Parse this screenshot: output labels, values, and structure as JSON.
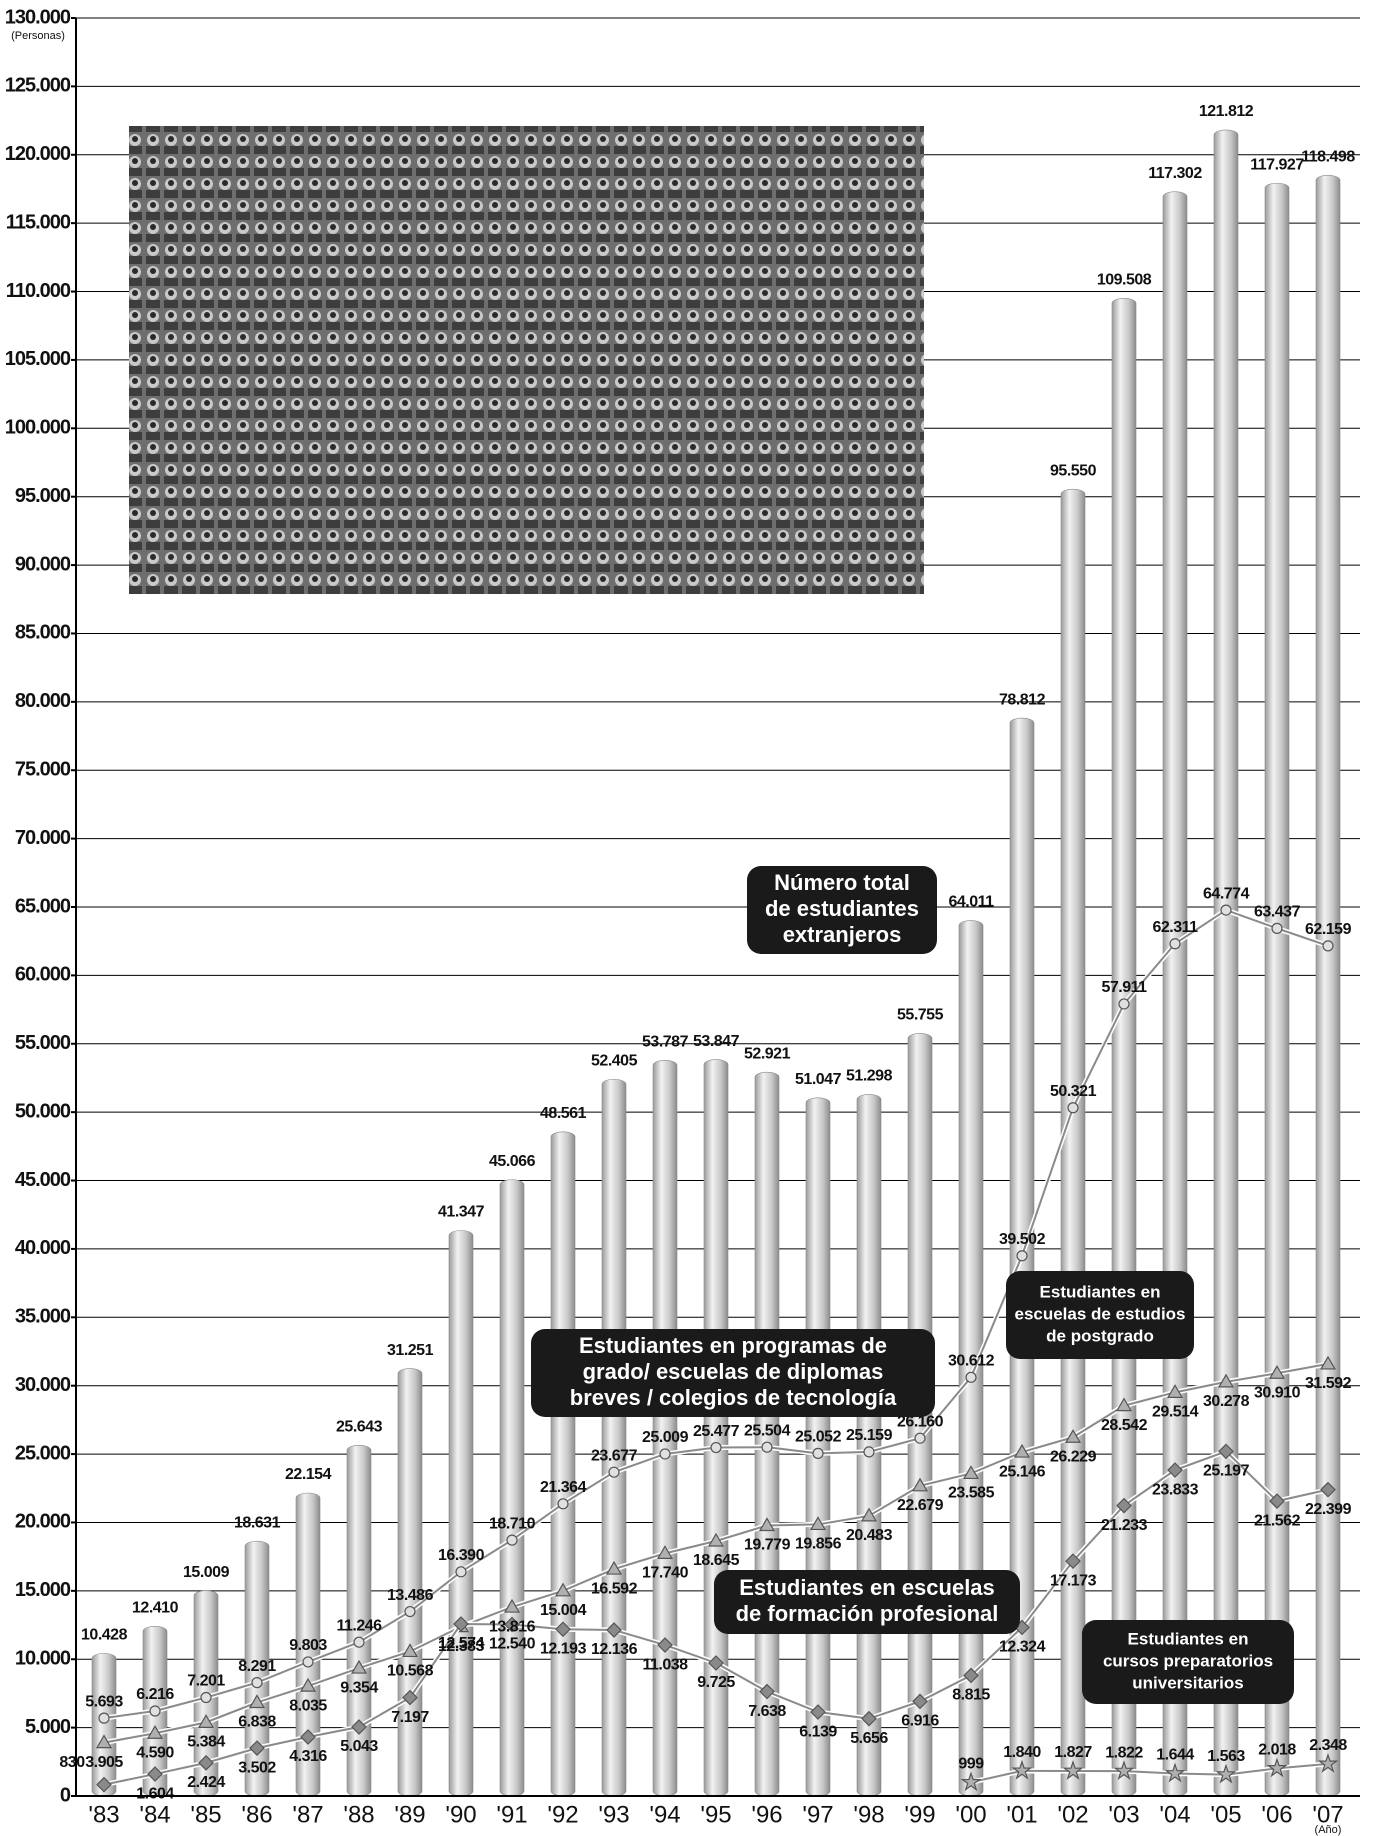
{
  "chart_data": {
    "type": "bar",
    "y_unit": "(Personas)",
    "x_unit": "(Año)",
    "categories": [
      "'83",
      "'84",
      "'85",
      "'86",
      "'87",
      "'88",
      "'89",
      "'90",
      "'91",
      "'92",
      "'93",
      "'94",
      "'95",
      "'96",
      "'97",
      "'98",
      "'99",
      "'00",
      "'01",
      "'02",
      "'03",
      "'04",
      "'05",
      "'06",
      "'07"
    ],
    "series": [
      {
        "name": "Número total de estudiantes extranjeros",
        "type": "bar",
        "color": "#c4c4c4",
        "values": [
          10428,
          12410,
          15009,
          18631,
          22154,
          25643,
          31251,
          41347,
          45066,
          48561,
          52405,
          53787,
          53847,
          52921,
          51047,
          51298,
          55755,
          64011,
          78812,
          95550,
          109508,
          117302,
          121812,
          117927,
          118498
        ],
        "value_labels": [
          "10.428",
          "12.410",
          "15.009",
          "18.631",
          "22.154",
          "25.643",
          "31.251",
          "41.347",
          "45.066",
          "48.561",
          "52.405",
          "53.787",
          "53.847",
          "52.921",
          "51.047",
          "51.298",
          "55.755",
          "64.011",
          "78.812",
          "95.550",
          "109.508",
          "117.302",
          "121.812",
          "117.927",
          "118.498"
        ]
      },
      {
        "name": "Estudiantes en programas de grado/ escuelas de diplomas breves / colegios de tecnología",
        "type": "line",
        "marker": "circle",
        "color": "#8a8a8a",
        "values": [
          5693,
          6216,
          7201,
          8291,
          9803,
          11246,
          13486,
          16390,
          18710,
          21364,
          23677,
          25009,
          25477,
          25504,
          25052,
          25159,
          26160,
          30612,
          39502,
          50321,
          57911,
          62311,
          64774,
          63437,
          62159
        ],
        "value_labels": [
          "5.693",
          "6.216",
          "7.201",
          "8.291",
          "9.803",
          "11.246",
          "13.486",
          "16.390",
          "18.710",
          "21.364",
          "23.677",
          "25.009",
          "25.477",
          "25.504",
          "25.052",
          "25.159",
          "26.160",
          "30.612",
          "39.502",
          "50.321",
          "57.911",
          "62.311",
          "64.774",
          "63.437",
          "62.159"
        ]
      },
      {
        "name": "Estudiantes en escuelas de estudios de postgrado",
        "type": "line",
        "marker": "triangle",
        "color": "#8a8a8a",
        "values": [
          3905,
          4590,
          5384,
          6838,
          8035,
          9354,
          10568,
          12383,
          13816,
          15004,
          16592,
          17740,
          18645,
          19779,
          19856,
          20483,
          22679,
          23585,
          25146,
          26229,
          28542,
          29514,
          30278,
          30910,
          31592
        ],
        "value_labels": [
          "3.905",
          "4.590",
          "5.384",
          "6.838",
          "8.035",
          "9.354",
          "10.568",
          "12.383",
          "13.816",
          "15.004",
          "16.592",
          "17.740",
          "18.645",
          "19.779",
          "19.856",
          "20.483",
          "22.679",
          "23.585",
          "25.146",
          "26.229",
          "28.542",
          "29.514",
          "30.278",
          "30.910",
          "31.592"
        ]
      },
      {
        "name": "Estudiantes en escuelas de formación profesional",
        "type": "line",
        "marker": "diamond",
        "color": "#8a8a8a",
        "values": [
          830,
          1604,
          2424,
          3502,
          4316,
          5043,
          7197,
          12574,
          12540,
          12193,
          12136,
          11038,
          9725,
          7638,
          6139,
          5656,
          6916,
          8815,
          12324,
          17173,
          21233,
          23833,
          25197,
          21562,
          22399
        ],
        "value_labels": [
          "830",
          "1.604",
          "2.424",
          "3.502",
          "4.316",
          "5.043",
          "7.197",
          "12.574",
          "12.540",
          "12.193",
          "12.136",
          "11.038",
          "9.725",
          "7.638",
          "6.139",
          "5.656",
          "6.916",
          "8.815",
          "12.324",
          "17.173",
          "21.233",
          "23.833",
          "25.197",
          "21.562",
          "22.399"
        ]
      },
      {
        "name": "Estudiantes en cursos preparatorios universitarios",
        "type": "line",
        "marker": "star",
        "color": "#8a8a8a",
        "values": [
          null,
          null,
          null,
          null,
          null,
          null,
          null,
          null,
          null,
          null,
          null,
          null,
          null,
          null,
          null,
          null,
          null,
          999,
          1840,
          1827,
          1822,
          1644,
          1563,
          2018,
          2348
        ],
        "value_labels": [
          null,
          null,
          null,
          null,
          null,
          null,
          null,
          null,
          null,
          null,
          null,
          null,
          null,
          null,
          null,
          null,
          null,
          "999",
          "1.840",
          "1.827",
          "1.822",
          "1.644",
          "1.563",
          "2.018",
          "2.348"
        ]
      }
    ],
    "annotations": [
      [
        "Número total",
        "de estudiantes",
        "extranjeros"
      ],
      [
        "Estudiantes en",
        "escuelas de estudios",
        "de postgrado"
      ],
      [
        "Estudiantes en programas de",
        "grado/ escuelas de diplomas",
        "breves / colegios de tecnología"
      ],
      [
        "Estudiantes en escuelas",
        "de formación profesional"
      ],
      [
        "Estudiantes en",
        "cursos preparatorios",
        "universitarios"
      ]
    ],
    "ylim": [
      0,
      130000
    ],
    "yticks": [
      0,
      {
        "value": 5000,
        "label": "5.000"
      },
      {
        "value": 10000,
        "label": "10.000"
      },
      {
        "value": 15000,
        "label": "15.000"
      },
      {
        "value": 20000,
        "label": "20.000"
      },
      {
        "value": 25000,
        "label": "25.000"
      },
      {
        "value": 30000,
        "label": "30.000"
      },
      {
        "value": 35000,
        "label": "35.000"
      },
      {
        "value": 40000,
        "label": "40.000"
      },
      {
        "value": 45000,
        "label": "45.000"
      },
      {
        "value": 50000,
        "label": "50.000"
      },
      {
        "value": 55000,
        "label": "55.000"
      },
      {
        "value": 60000,
        "label": "60.000"
      },
      {
        "value": 65000,
        "label": "65.000"
      },
      {
        "value": 70000,
        "label": "70.000"
      },
      {
        "value": 75000,
        "label": "75.000"
      },
      {
        "value": 80000,
        "label": "80.000"
      },
      {
        "value": 85000,
        "label": "85.000"
      },
      {
        "value": 90000,
        "label": "90.000"
      },
      {
        "value": 95000,
        "label": "95.000"
      },
      {
        "value": 100000,
        "label": "100.000"
      },
      {
        "value": 105000,
        "label": "105.000"
      },
      {
        "value": 110000,
        "label": "110.000"
      },
      {
        "value": 115000,
        "label": "115.000"
      },
      {
        "value": 120000,
        "label": "120.000"
      },
      {
        "value": 125000,
        "label": "125.000"
      },
      {
        "value": 130000,
        "label": "130.000"
      }
    ],
    "grid": true
  }
}
